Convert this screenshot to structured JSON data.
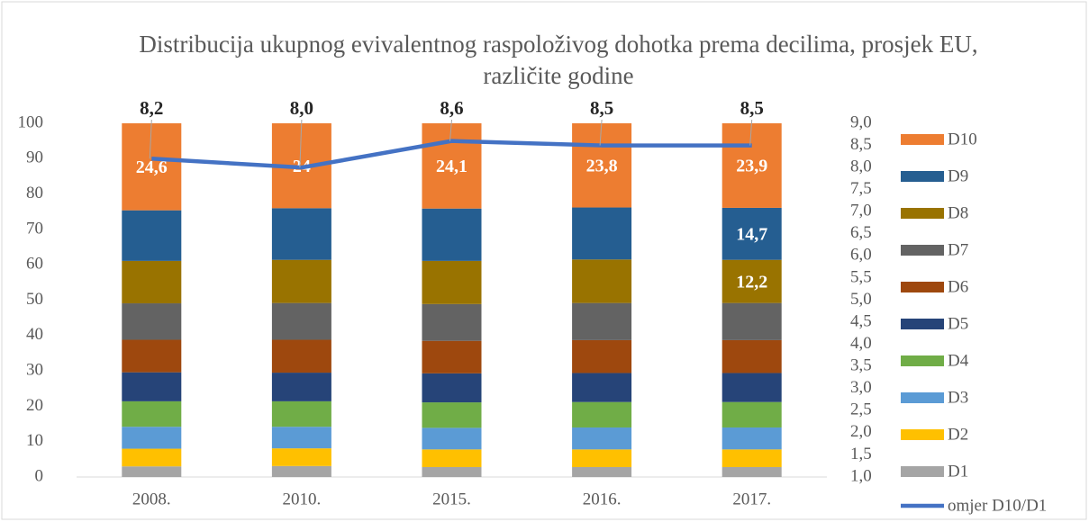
{
  "chart_data": {
    "type": "bar",
    "stacked": true,
    "title": "Distribucija ukupnog evivalentnog raspoloživog dohotka prema decilima, prosjek EU, različite godine",
    "categories": [
      "2008.",
      "2010.",
      "2015.",
      "2016.",
      "2017."
    ],
    "series": [
      {
        "name": "D1",
        "color": "#a5a5a5",
        "values": [
          3.0,
          3.1,
          2.8,
          2.8,
          2.8
        ]
      },
      {
        "name": "D2",
        "color": "#ffc000",
        "values": [
          5.0,
          5.0,
          5.0,
          5.0,
          5.0
        ]
      },
      {
        "name": "D3",
        "color": "#5b9bd5",
        "values": [
          6.2,
          6.1,
          6.1,
          6.2,
          6.2
        ]
      },
      {
        "name": "D4",
        "color": "#70ad47",
        "values": [
          7.2,
          7.2,
          7.2,
          7.2,
          7.2
        ]
      },
      {
        "name": "D5",
        "color": "#264478",
        "values": [
          8.2,
          8.1,
          8.2,
          8.2,
          8.2
        ]
      },
      {
        "name": "D6",
        "color": "#9e480e",
        "values": [
          9.2,
          9.3,
          9.2,
          9.3,
          9.3
        ]
      },
      {
        "name": "D7",
        "color": "#636363",
        "values": [
          10.3,
          10.4,
          10.4,
          10.5,
          10.5
        ]
      },
      {
        "name": "D8",
        "color": "#997300",
        "values": [
          12.0,
          12.2,
          12.2,
          12.3,
          12.2
        ],
        "value_labels": [
          null,
          null,
          null,
          null,
          "12,2"
        ]
      },
      {
        "name": "D9",
        "color": "#255e91",
        "values": [
          14.3,
          14.6,
          14.8,
          14.7,
          14.7
        ],
        "value_labels": [
          null,
          null,
          null,
          null,
          "14,7"
        ]
      },
      {
        "name": "D10",
        "color": "#ed7d31",
        "values": [
          24.6,
          24.0,
          24.1,
          23.8,
          23.9
        ],
        "value_labels": [
          "24,6",
          "24",
          "24,1",
          "23,8",
          "23,9"
        ]
      },
      {
        "name": "omjer D10/D1",
        "color": "#4472c4",
        "type": "line",
        "axis": "y2",
        "values": [
          8.2,
          8.0,
          8.6,
          8.5,
          8.5
        ],
        "value_labels": [
          "8,2",
          "8,0",
          "8,6",
          "8,5",
          "8,5"
        ]
      }
    ],
    "ylim": [
      0,
      100
    ],
    "yticks": [
      0,
      10,
      20,
      30,
      40,
      50,
      60,
      70,
      80,
      90,
      100
    ],
    "y2lim": [
      1.0,
      9.0
    ],
    "y2ticks": [
      {
        "value": 1.0,
        "label": "1,0"
      },
      {
        "value": 1.5,
        "label": "1,5"
      },
      {
        "value": 2.0,
        "label": "2,0"
      },
      {
        "value": 2.5,
        "label": "2,5"
      },
      {
        "value": 3.0,
        "label": "3,0"
      },
      {
        "value": 3.5,
        "label": "3,5"
      },
      {
        "value": 4.0,
        "label": "4,0"
      },
      {
        "value": 4.5,
        "label": "4,5"
      },
      {
        "value": 5.0,
        "label": "5,0"
      },
      {
        "value": 5.5,
        "label": "5,5"
      },
      {
        "value": 6.0,
        "label": "6,0"
      },
      {
        "value": 6.5,
        "label": "6,5"
      },
      {
        "value": 7.0,
        "label": "7,0"
      },
      {
        "value": 7.5,
        "label": "7,5"
      },
      {
        "value": 8.0,
        "label": "8,0"
      },
      {
        "value": 8.5,
        "label": "8,5"
      },
      {
        "value": 9.0,
        "label": "9,0"
      }
    ],
    "grid": false,
    "legend": "right"
  }
}
